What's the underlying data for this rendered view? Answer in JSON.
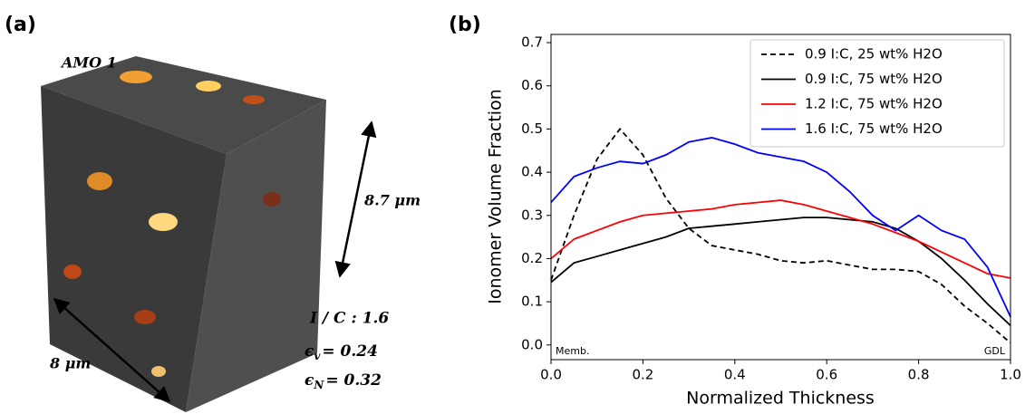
{
  "panel_a": {
    "label": "(a)",
    "sample": "AMO 1",
    "height_dim": "8.7 μm",
    "width_dim": "8 μm",
    "ratio": "I / C : 1.6",
    "porosity_v": {
      "symbol": "ϵ",
      "subscript": "v",
      "text": "= 0.24"
    },
    "porosity_n": {
      "symbol": "ϵ",
      "subscript": "N",
      "text": "= 0.32"
    }
  },
  "chart_data": {
    "type": "line",
    "panel_label": "(b)",
    "xlabel": "Normalized Thickness",
    "ylabel": "Ionomer Volume Fraction",
    "annotations": [
      "Memb.",
      "GDL"
    ],
    "x": [
      0,
      0.05,
      0.1,
      0.15,
      0.2,
      0.25,
      0.3,
      0.35,
      0.4,
      0.45,
      0.5,
      0.55,
      0.6,
      0.65,
      0.7,
      0.75,
      0.8,
      0.85,
      0.9,
      0.95,
      1.0
    ],
    "series": [
      {
        "name": "0.9 I:C, 25 wt% H2O",
        "color": "#000000",
        "dash": true,
        "values": [
          0.15,
          0.3,
          0.43,
          0.5,
          0.44,
          0.34,
          0.27,
          0.23,
          0.22,
          0.21,
          0.195,
          0.19,
          0.195,
          0.185,
          0.175,
          0.175,
          0.17,
          0.14,
          0.09,
          0.05,
          0.005
        ]
      },
      {
        "name": "0.9 I:C, 75 wt% H2O",
        "color": "#000000",
        "dash": false,
        "values": [
          0.145,
          0.19,
          0.205,
          0.22,
          0.235,
          0.25,
          0.27,
          0.275,
          0.28,
          0.285,
          0.29,
          0.295,
          0.295,
          0.29,
          0.285,
          0.27,
          0.24,
          0.2,
          0.15,
          0.095,
          0.045
        ]
      },
      {
        "name": "1.2 I:C, 75 wt% H2O",
        "color": "#ff0000",
        "dash": false,
        "values": [
          0.2,
          0.245,
          0.265,
          0.285,
          0.3,
          0.305,
          0.31,
          0.315,
          0.325,
          0.33,
          0.335,
          0.325,
          0.31,
          0.295,
          0.28,
          0.26,
          0.24,
          0.215,
          0.19,
          0.165,
          0.155
        ]
      },
      {
        "name": "1.6 I:C, 75 wt% H2O",
        "color": "#0000ff",
        "dash": false,
        "values": [
          0.33,
          0.39,
          0.41,
          0.425,
          0.42,
          0.44,
          0.47,
          0.48,
          0.465,
          0.445,
          0.435,
          0.425,
          0.4,
          0.355,
          0.3,
          0.265,
          0.3,
          0.265,
          0.245,
          0.18,
          0.065
        ]
      }
    ],
    "xlim": [
      0,
      1.0
    ],
    "xticks": [
      {
        "value": 0,
        "label": "0.0"
      },
      0.2,
      0.4,
      0.6,
      0.8,
      {
        "value": 1.0,
        "label": "1.0"
      }
    ],
    "ylim": [
      -0.034,
      0.719
    ],
    "yticks": [
      {
        "value": 0,
        "label": "0.0"
      },
      0.1,
      0.2,
      0.3,
      0.4,
      0.5,
      0.6,
      0.7
    ],
    "legend": "upper right",
    "grid": false
  }
}
